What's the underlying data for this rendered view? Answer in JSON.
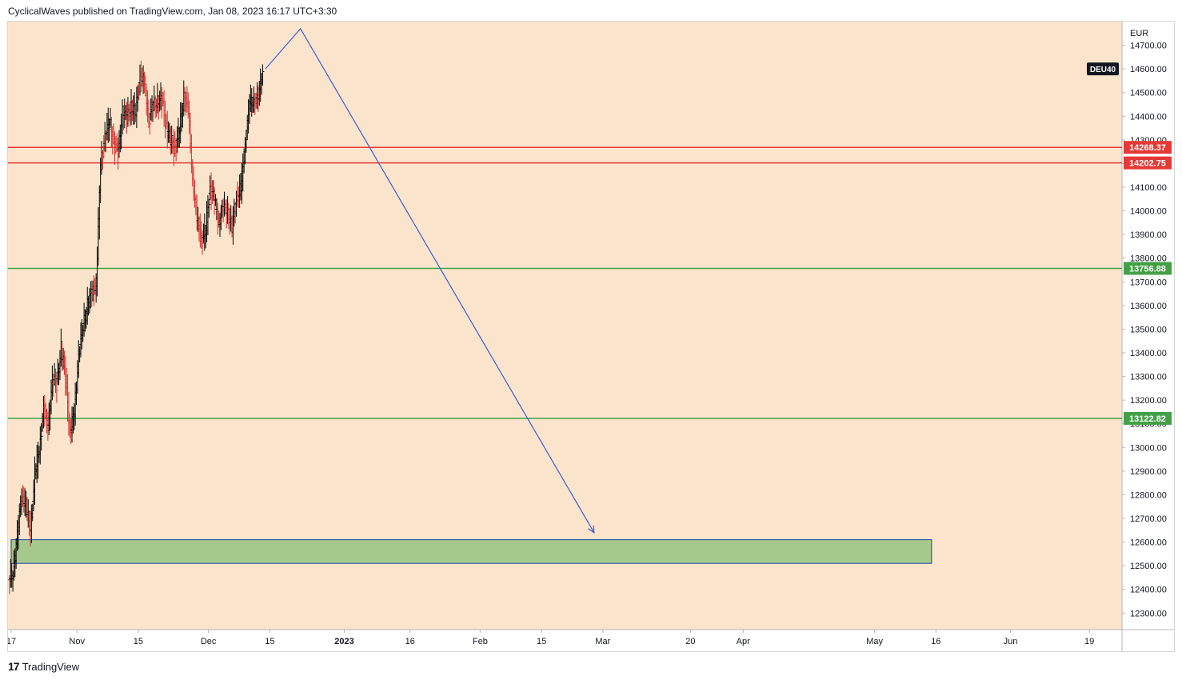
{
  "header": {
    "publish_line": "CyclicalWaves published on TradingView.com, Jan 08, 2023 16:17 UTC+3:30"
  },
  "footer": {
    "brand": "TradingView",
    "logo_glyph": "17"
  },
  "chart_data": {
    "type": "ohlc",
    "symbol": "DEU40",
    "currency": "EUR",
    "background": "#fae5cc",
    "bar_colors": {
      "up": "#000000",
      "down": "#d32f2f"
    },
    "ylim": [
      12230,
      14800
    ],
    "y_ticks": [
      12300,
      12400,
      12500,
      12600,
      12700,
      12800,
      12900,
      13000,
      13100,
      13200,
      13300,
      13400,
      13500,
      13600,
      13700,
      13800,
      13900,
      14000,
      14100,
      14200,
      14300,
      14400,
      14500,
      14600,
      14700
    ],
    "y_tick_labels": [
      "12300.00",
      "12400.00",
      "12500.00",
      "12600.00",
      "12700.00",
      "12800.00",
      "12900.00",
      "13000.00",
      "13100.00",
      "13200.00",
      "13300.00",
      "13400.00",
      "13500.00",
      "13600.00",
      "13700.00",
      "13800.00",
      "13900.00",
      "14000.00",
      "14100.00",
      "14200.00",
      "14300.00",
      "14400.00",
      "14500.00",
      "14600.00",
      "14700.00"
    ],
    "x_ticks": [
      {
        "label": "17",
        "day": 0
      },
      {
        "label": "Nov",
        "day": 15
      },
      {
        "label": "15",
        "day": 29
      },
      {
        "label": "Dec",
        "day": 45
      },
      {
        "label": "15",
        "day": 59
      },
      {
        "label": "2023",
        "day": 76
      },
      {
        "label": "16",
        "day": 91
      },
      {
        "label": "Feb",
        "day": 107
      },
      {
        "label": "15",
        "day": 121
      },
      {
        "label": "Mar",
        "day": 135
      },
      {
        "label": "20",
        "day": 155
      },
      {
        "label": "Apr",
        "day": 167
      },
      {
        "label": "May",
        "day": 197
      },
      {
        "label": "16",
        "day": 211
      },
      {
        "label": "Jun",
        "day": 228
      },
      {
        "label": "19",
        "day": 246
      }
    ],
    "x_range_days": [
      0,
      252
    ],
    "bars_daily_close": [
      {
        "day": 0,
        "c": 12480
      },
      {
        "day": 1,
        "c": 12620
      },
      {
        "day": 2,
        "c": 12800
      },
      {
        "day": 3,
        "c": 12760
      },
      {
        "day": 4,
        "c": 12640
      },
      {
        "day": 5,
        "c": 12880
      },
      {
        "day": 6,
        "c": 13000
      },
      {
        "day": 7,
        "c": 13150
      },
      {
        "day": 8,
        "c": 13100
      },
      {
        "day": 9,
        "c": 13280
      },
      {
        "day": 10,
        "c": 13270
      },
      {
        "day": 11,
        "c": 13420
      },
      {
        "day": 12,
        "c": 13300
      },
      {
        "day": 13,
        "c": 13050
      },
      {
        "day": 14,
        "c": 13160
      },
      {
        "day": 15,
        "c": 13380
      },
      {
        "day": 16,
        "c": 13520
      },
      {
        "day": 17,
        "c": 13600
      },
      {
        "day": 18,
        "c": 13650
      },
      {
        "day": 19,
        "c": 13690
      },
      {
        "day": 20,
        "c": 14200
      },
      {
        "day": 21,
        "c": 14300
      },
      {
        "day": 22,
        "c": 14390
      },
      {
        "day": 23,
        "c": 14280
      },
      {
        "day": 24,
        "c": 14250
      },
      {
        "day": 25,
        "c": 14420
      },
      {
        "day": 26,
        "c": 14390
      },
      {
        "day": 27,
        "c": 14440
      },
      {
        "day": 28,
        "c": 14420
      },
      {
        "day": 29,
        "c": 14560
      },
      {
        "day": 30,
        "c": 14550
      },
      {
        "day": 31,
        "c": 14380
      },
      {
        "day": 32,
        "c": 14440
      },
      {
        "day": 33,
        "c": 14470
      },
      {
        "day": 34,
        "c": 14460
      },
      {
        "day": 35,
        "c": 14360
      },
      {
        "day": 36,
        "c": 14300
      },
      {
        "day": 37,
        "c": 14260
      },
      {
        "day": 38,
        "c": 14340
      },
      {
        "day": 39,
        "c": 14490
      },
      {
        "day": 40,
        "c": 14420
      },
      {
        "day": 41,
        "c": 14150
      },
      {
        "day": 42,
        "c": 13960
      },
      {
        "day": 43,
        "c": 13880
      },
      {
        "day": 44,
        "c": 13920
      },
      {
        "day": 45,
        "c": 14100
      },
      {
        "day": 46,
        "c": 14040
      },
      {
        "day": 47,
        "c": 13960
      },
      {
        "day": 48,
        "c": 14000
      },
      {
        "day": 49,
        "c": 14010
      },
      {
        "day": 50,
        "c": 13920
      },
      {
        "day": 51,
        "c": 14050
      },
      {
        "day": 52,
        "c": 14100
      },
      {
        "day": 53,
        "c": 14280
      },
      {
        "day": 54,
        "c": 14450
      },
      {
        "day": 55,
        "c": 14480
      },
      {
        "day": 56,
        "c": 14460
      },
      {
        "day": 57,
        "c": 14600
      }
    ],
    "horizontal_levels": [
      {
        "value": 14268.37,
        "label": "14268.37",
        "color": "#e53935"
      },
      {
        "value": 14202.75,
        "label": "14202.75",
        "color": "#e53935"
      },
      {
        "value": 13756.88,
        "label": "13756.88",
        "color": "#43a047"
      },
      {
        "value": 13122.82,
        "label": "13122.82",
        "color": "#43a047"
      }
    ],
    "zone": {
      "y_low": 12510,
      "y_high": 12610,
      "x_start_day": 0,
      "x_end_day": 210,
      "fill": "#a5c98d",
      "border": "#1e3fa8"
    },
    "projection_path": [
      {
        "day": 58,
        "value": 14600
      },
      {
        "day": 66,
        "value": 14770
      },
      {
        "day": 133,
        "value": 12640
      }
    ],
    "projection_color": "#3c5bd6",
    "symbol_badge": {
      "text": "DEU40",
      "value": 14600
    }
  }
}
